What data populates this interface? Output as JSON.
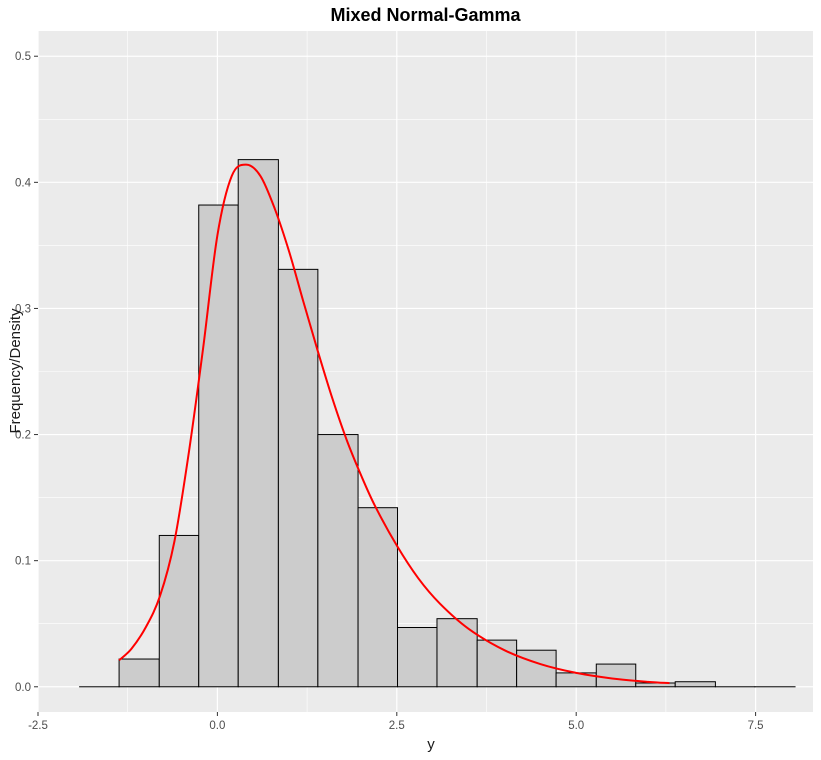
{
  "chart_data": {
    "type": "bar",
    "title": "Mixed Normal-Gamma",
    "xlabel": "y",
    "ylabel": "Frequency/Density",
    "xlim": [
      -2.5,
      8.3
    ],
    "ylim": [
      -0.02,
      0.52
    ],
    "x_ticks": [
      -2.5,
      0.0,
      2.5,
      5.0,
      7.5
    ],
    "x_tick_labels": [
      "-2.5",
      "0.0",
      "2.5",
      "5.0",
      "7.5"
    ],
    "y_ticks": [
      0.0,
      0.1,
      0.2,
      0.3,
      0.4,
      0.5
    ],
    "y_tick_labels": [
      "0.0",
      "0.1",
      "0.2",
      "0.3",
      "0.4",
      "0.5"
    ],
    "grid": true,
    "histogram": {
      "bin_edges": [
        -1.92,
        -1.37,
        -0.81,
        -0.26,
        0.29,
        0.85,
        1.4,
        1.96,
        2.51,
        3.06,
        3.62,
        4.17,
        4.72,
        5.28,
        5.83,
        6.38,
        6.94,
        7.49,
        8.05
      ],
      "values": [
        0.0,
        0.022,
        0.12,
        0.382,
        0.418,
        0.331,
        0.2,
        0.142,
        0.047,
        0.054,
        0.037,
        0.029,
        0.011,
        0.018,
        0.003,
        0.004,
        0.0,
        0.0
      ],
      "fill": "#cccccc",
      "stroke": "#000000"
    },
    "density_curve": {
      "name": "",
      "color": "#ff0000",
      "x": [
        -1.37,
        -1.2,
        -1.0,
        -0.8,
        -0.6,
        -0.4,
        -0.2,
        0.0,
        0.2,
        0.4,
        0.6,
        0.8,
        1.0,
        1.2,
        1.4,
        1.6,
        1.8,
        2.0,
        2.2,
        2.5,
        2.8,
        3.1,
        3.5,
        4.0,
        4.5,
        5.0,
        5.5,
        6.0,
        6.3
      ],
      "y": [
        0.021,
        0.03,
        0.047,
        0.072,
        0.115,
        0.185,
        0.268,
        0.358,
        0.405,
        0.414,
        0.405,
        0.379,
        0.345,
        0.305,
        0.266,
        0.229,
        0.196,
        0.168,
        0.143,
        0.112,
        0.086,
        0.066,
        0.046,
        0.029,
        0.018,
        0.011,
        0.0066,
        0.0039,
        0.0029
      ]
    }
  }
}
